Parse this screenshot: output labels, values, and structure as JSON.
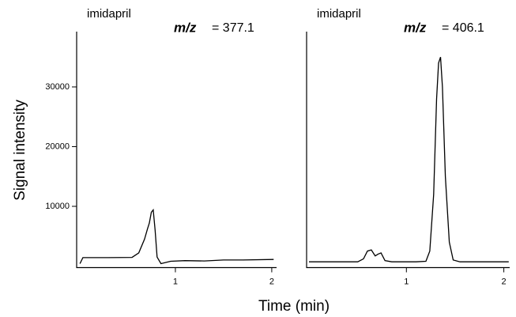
{
  "ylabel": "Signal intensity",
  "xlabel": "Time (min)",
  "chart_data": [
    {
      "type": "line",
      "title": "imidapril",
      "mz_label": "m/z",
      "mz_value": "= 377.1",
      "color": "#000000",
      "x": [
        0.01,
        0.04,
        0.3,
        0.55,
        0.62,
        0.68,
        0.71,
        0.73,
        0.75,
        0.77,
        0.79,
        0.81,
        0.85,
        0.95,
        1.1,
        1.3,
        1.5,
        1.7,
        2.02
      ],
      "values": [
        400,
        1400,
        1400,
        1450,
        2200,
        4500,
        6200,
        7200,
        9000,
        9400,
        6000,
        1500,
        400,
        800,
        900,
        850,
        1000,
        1000,
        1100
      ],
      "xlim": [
        0,
        2.05
      ],
      "xticks": [
        1,
        2
      ],
      "ylim": [
        0,
        39000
      ],
      "yticks": [
        10000,
        20000,
        30000
      ]
    },
    {
      "type": "line",
      "title": "imidapril",
      "mz_label": "m/z",
      "mz_value": "= 406.1",
      "color": "#000000",
      "x": [
        0.0,
        0.5,
        0.56,
        0.6,
        0.64,
        0.68,
        0.71,
        0.74,
        0.78,
        0.85,
        1.1,
        1.2,
        1.24,
        1.28,
        1.31,
        1.33,
        1.35,
        1.37,
        1.4,
        1.44,
        1.48,
        1.55,
        2.05
      ],
      "values": [
        700,
        700,
        1200,
        2500,
        2700,
        1700,
        2000,
        2200,
        900,
        700,
        700,
        800,
        2500,
        12000,
        28000,
        34000,
        35000,
        30000,
        15000,
        4000,
        1000,
        700,
        700
      ],
      "xlim": [
        0,
        2.06
      ],
      "xticks": [
        1,
        2
      ],
      "ylim": [
        0,
        39000
      ]
    }
  ]
}
